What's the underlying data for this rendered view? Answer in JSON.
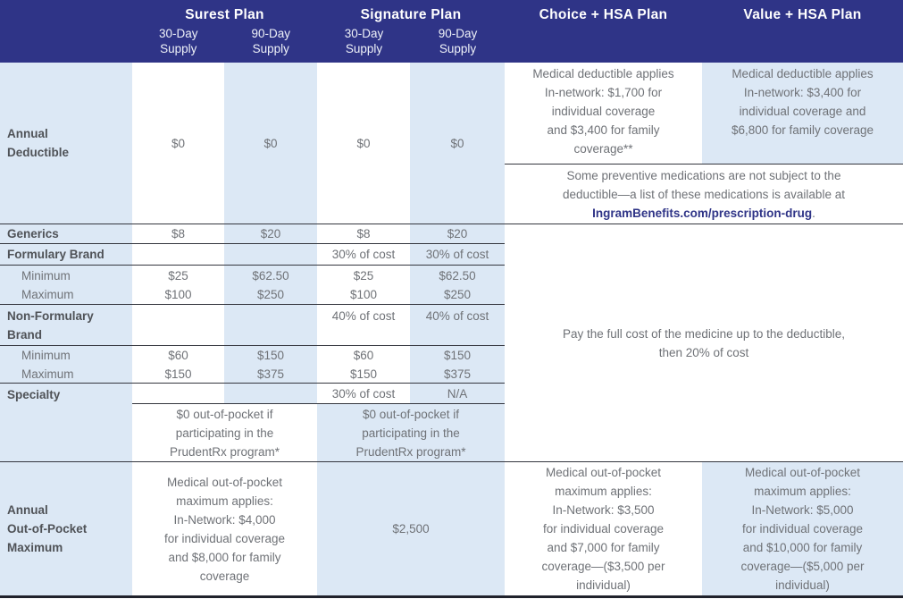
{
  "colors": {
    "brand_navy": "#2f3487",
    "light_blue": "#dce8f5",
    "body_text": "#6f7277"
  },
  "header": {
    "plans": [
      {
        "name": "Surest Plan",
        "supplies": [
          "30-Day\nSupply",
          "90-Day\nSupply"
        ]
      },
      {
        "name": "Signature Plan",
        "supplies": [
          "30-Day\nSupply",
          "90-Day\nSupply"
        ]
      },
      {
        "name": "Choice + HSA Plan"
      },
      {
        "name": "Value + HSA Plan"
      }
    ]
  },
  "deductible_row": {
    "label": "Annual\nDeductible",
    "values": [
      "$0",
      "$0",
      "$0",
      "$0"
    ],
    "choice_note": "Medical deductible applies\nIn-network: $1,700 for\nindividual coverage\nand $3,400 for family\ncoverage**",
    "value_note": "Medical deductible applies\nIn-network: $3,400 for\nindividual coverage and\n$6,800 for family coverage",
    "preventive_text": "Some preventive medications are not subject to the\ndeductible—a list of these medications is available at",
    "preventive_link": "IngramBenefits.com/prescription-drug",
    "preventive_suffix": "."
  },
  "tier_rows": {
    "generics": {
      "label": "Generics",
      "values": [
        "$8",
        "$20",
        "$8",
        "$20"
      ]
    },
    "formulary": {
      "label": "Formulary Brand",
      "values": [
        "",
        "",
        "30% of cost",
        "30% of cost"
      ]
    },
    "formulary_minmax": {
      "labels": "Minimum\nMaximum",
      "values": [
        "$25\n$100",
        "$62.50\n$250",
        "$25\n$100",
        "$62.50\n$250"
      ]
    },
    "nonformulary": {
      "label": "Non-Formulary\nBrand",
      "values": [
        "",
        "",
        "40% of cost",
        "40% of cost"
      ]
    },
    "nonformulary_minmax": {
      "labels": "Minimum\nMaximum",
      "values": [
        "$60\n$150",
        "$150\n$375",
        "$60\n$150",
        "$150\n$375"
      ]
    },
    "specialty": {
      "label": "Specialty",
      "values": [
        "",
        "",
        "30% of cost",
        "N/A"
      ]
    },
    "prudentrx": {
      "surest": "$0 out-of-pocket if\nparticipating in the\nPrudentRx program*",
      "signature": "$0 out-of-pocket if\nparticipating in the\nPrudentRx program*"
    },
    "hsa_note": "Pay the full cost of the medicine up to the deductible,\nthen 20% of cost"
  },
  "oop_row": {
    "label": "Annual\nOut-of-Pocket\nMaximum",
    "surest": "Medical out-of-pocket\nmaximum applies:\nIn-Network: $4,000\nfor individual coverage\nand $8,000 for family\ncoverage",
    "signature": "$2,500",
    "choice": "Medical out-of-pocket\nmaximum applies:\nIn-Network: $3,500\nfor individual coverage\nand $7,000 for family\ncoverage—($3,500 per\nindividual)",
    "value": "Medical out-of-pocket\nmaximum applies:\nIn-Network: $5,000\nfor individual coverage\nand $10,000 for family\ncoverage—($5,000 per\nindividual)"
  }
}
